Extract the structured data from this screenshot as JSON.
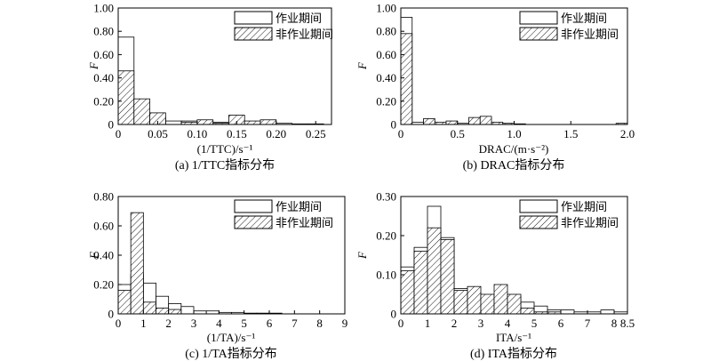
{
  "legend_labels": {
    "work": "作业期间",
    "nonwork": "非作业期间"
  },
  "colors": {
    "work_fill": "#ffffff",
    "nonwork_fill": "hatched",
    "stroke": "#000000"
  },
  "chart_data": [
    {
      "id": "a",
      "type": "bar",
      "caption": "(a) 1/TTC指标分布",
      "xlabel": "(1/TTC)/s⁻¹",
      "ylabel": "F",
      "xlim": [
        0,
        0.27
      ],
      "ylim": [
        0,
        1.0
      ],
      "bin_width": 0.02,
      "x_ticks": [
        "0",
        "0.05",
        "0.10",
        "0.15",
        "0.20",
        "0.25"
      ],
      "x_tick_values": [
        0,
        0.05,
        0.1,
        0.15,
        0.2,
        0.25
      ],
      "y_ticks": [
        "0",
        "0.20",
        "0.40",
        "0.60",
        "0.80",
        "1.00"
      ],
      "y_tick_values": [
        0,
        0.2,
        0.4,
        0.6,
        0.8,
        1.0
      ],
      "bin_starts": [
        0,
        0.02,
        0.04,
        0.06,
        0.08,
        0.1,
        0.12,
        0.14,
        0.16,
        0.18,
        0.2,
        0.22,
        0.24
      ],
      "series": [
        {
          "name": "作业期间",
          "key": "work",
          "values": [
            0.75,
            0.04,
            0.06,
            0.03,
            0.03,
            0.03,
            0.02,
            0.03,
            0.02,
            0.02,
            0.01,
            0.005,
            0.005
          ]
        },
        {
          "name": "非作业期间",
          "key": "nonwork",
          "values": [
            0.46,
            0.22,
            0.1,
            0.0,
            0.02,
            0.04,
            0.01,
            0.08,
            0.03,
            0.04,
            0.0,
            0.0,
            0.0
          ]
        }
      ]
    },
    {
      "id": "b",
      "type": "bar",
      "caption": "(b) DRAC指标分布",
      "xlabel": "DRAC/(m·s⁻²)",
      "ylabel": "F",
      "xlim": [
        0,
        2.0
      ],
      "ylim": [
        0,
        1.0
      ],
      "bin_width": 0.1,
      "x_ticks": [
        "0",
        "0.5",
        "1.0",
        "1.5",
        "2.0"
      ],
      "x_tick_values": [
        0,
        0.5,
        1.0,
        1.5,
        2.0
      ],
      "y_ticks": [
        "0",
        "0.20",
        "0.40",
        "0.60",
        "0.80",
        "1.00"
      ],
      "y_tick_values": [
        0,
        0.2,
        0.4,
        0.6,
        0.8,
        1.0
      ],
      "bin_starts": [
        0,
        0.1,
        0.2,
        0.3,
        0.4,
        0.5,
        0.6,
        0.7,
        0.8,
        0.9,
        1.0,
        1.1,
        1.2,
        1.3,
        1.4,
        1.5,
        1.6,
        1.7,
        1.8,
        1.9
      ],
      "series": [
        {
          "name": "作业期间",
          "key": "work",
          "values": [
            0.92,
            0.02,
            0.03,
            0.01,
            0.01,
            0.01,
            0.01,
            0.01,
            0.01,
            0.005,
            0.005,
            0.0,
            0.0,
            0.0,
            0.0,
            0.0,
            0.0,
            0.0,
            0.0,
            0.005
          ]
        },
        {
          "name": "非作业期间",
          "key": "nonwork",
          "values": [
            0.78,
            0.0,
            0.05,
            0.02,
            0.03,
            0.0,
            0.06,
            0.07,
            0.02,
            0.01,
            0.005,
            0.0,
            0.0,
            0.0,
            0.0,
            0.0,
            0.0,
            0.0,
            0.0,
            0.01
          ]
        }
      ]
    },
    {
      "id": "c",
      "type": "bar",
      "caption": "(c) 1/TA指标分布",
      "xlabel": "(1/TA)/s⁻¹",
      "ylabel": "F",
      "xlim": [
        0,
        9
      ],
      "ylim": [
        0,
        0.8
      ],
      "bin_width": 0.5,
      "x_ticks": [
        "0",
        "1",
        "2",
        "3",
        "4",
        "5",
        "6",
        "7",
        "8",
        "9"
      ],
      "x_tick_values": [
        0,
        1,
        2,
        3,
        4,
        5,
        6,
        7,
        8,
        9
      ],
      "y_ticks": [
        "0",
        "0.20",
        "0.40",
        "0.60",
        "0.80"
      ],
      "y_tick_values": [
        0,
        0.2,
        0.4,
        0.6,
        0.8
      ],
      "bin_starts": [
        0,
        0.5,
        1.0,
        1.5,
        2.0,
        2.5,
        3.0,
        3.5,
        4.0,
        4.5,
        5.0,
        5.5,
        6.0,
        6.5,
        7.0,
        7.5,
        8.0,
        8.5
      ],
      "series": [
        {
          "name": "作业期间",
          "key": "work",
          "values": [
            0.2,
            0.27,
            0.21,
            0.12,
            0.07,
            0.05,
            0.02,
            0.02,
            0.01,
            0.01,
            0.005,
            0.005,
            0.005,
            0.0,
            0.0,
            0.0,
            0.0,
            0.0
          ]
        },
        {
          "name": "非作业期间",
          "key": "nonwork",
          "values": [
            0.16,
            0.69,
            0.08,
            0.04,
            0.03,
            0.0,
            0.0,
            0.0,
            0.0,
            0.0,
            0.0,
            0.0,
            0.0,
            0.0,
            0.0,
            0.0,
            0.0,
            0.0
          ]
        }
      ]
    },
    {
      "id": "d",
      "type": "bar",
      "caption": "(d) ITA指标分布",
      "xlabel": "ITA/s⁻¹",
      "ylabel": "F",
      "xlim": [
        0,
        8.5
      ],
      "ylim": [
        0,
        0.3
      ],
      "bin_width": 0.5,
      "x_ticks": [
        "0",
        "1",
        "2",
        "3",
        "4",
        "5",
        "6",
        "7",
        "8",
        "8.5"
      ],
      "x_tick_values": [
        0,
        1,
        2,
        3,
        4,
        5,
        6,
        7,
        8,
        8.5
      ],
      "y_ticks": [
        "0",
        "0.10",
        "0.20",
        "0.30"
      ],
      "y_tick_values": [
        0,
        0.1,
        0.2,
        0.3
      ],
      "bin_starts": [
        0,
        0.5,
        1.0,
        1.5,
        2.0,
        2.5,
        3.0,
        3.5,
        4.0,
        4.5,
        5.0,
        5.5,
        6.0,
        6.5,
        7.0,
        7.5,
        8.0
      ],
      "series": [
        {
          "name": "作业期间",
          "key": "work",
          "values": [
            0.12,
            0.17,
            0.275,
            0.195,
            0.065,
            0.055,
            0.045,
            0.045,
            0.045,
            0.03,
            0.02,
            0.01,
            0.01,
            0.005,
            0.005,
            0.01,
            0.005
          ]
        },
        {
          "name": "非作业期间",
          "key": "nonwork",
          "values": [
            0.11,
            0.16,
            0.22,
            0.19,
            0.06,
            0.07,
            0.05,
            0.075,
            0.05,
            0.015,
            0.005,
            0.005,
            0.0,
            0.0,
            0.0,
            0.0,
            0.0
          ]
        }
      ]
    }
  ]
}
